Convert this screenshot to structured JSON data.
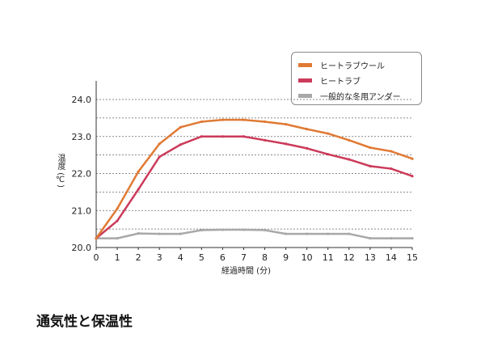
{
  "title": "通気性と保温性",
  "chart_data": {
    "type": "line",
    "xlabel": "経過時間 (分)",
    "ylabel": "温度 (℃)",
    "x": [
      0,
      1,
      2,
      3,
      4,
      5,
      6,
      7,
      8,
      9,
      10,
      11,
      12,
      13,
      14,
      15
    ],
    "xlim": [
      0,
      15
    ],
    "ylim": [
      20.0,
      24.5
    ],
    "yticks": [
      "20.0",
      "21.0",
      "22.0",
      "23.0",
      "24.0"
    ],
    "grid": "horizontal dashed every 0.5",
    "legend_position": "top-right",
    "series": [
      {
        "name": "ヒートラブウール",
        "color": "#e07a34",
        "values": [
          20.25,
          21.05,
          22.05,
          22.8,
          23.25,
          23.4,
          23.45,
          23.45,
          23.4,
          23.33,
          23.2,
          23.08,
          22.9,
          22.7,
          22.6,
          22.4
        ]
      },
      {
        "name": "ヒートラブ",
        "color": "#cc3a5a",
        "values": [
          20.25,
          20.72,
          21.57,
          22.45,
          22.78,
          23.0,
          23.0,
          23.0,
          22.9,
          22.8,
          22.68,
          22.52,
          22.38,
          22.2,
          22.13,
          21.93
        ]
      },
      {
        "name": "一般的な冬用アンダー",
        "color": "#a8a8a8",
        "values": [
          20.25,
          20.25,
          20.38,
          20.37,
          20.37,
          20.47,
          20.48,
          20.48,
          20.47,
          20.37,
          20.37,
          20.37,
          20.37,
          20.25,
          20.25,
          20.25
        ]
      }
    ]
  }
}
